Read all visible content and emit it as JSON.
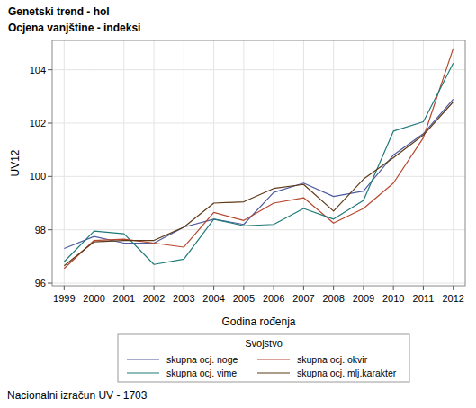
{
  "chart_data": {
    "type": "line",
    "title": "Genetski trend - hol",
    "subtitle": "Ocjena vanjštine - indeksi",
    "x_label": "Godina rođenja",
    "y_label": "UV12",
    "legend_title": "Svojstvo",
    "note": "Nacionalni izračun UV - 1703",
    "x": [
      1999,
      2000,
      2001,
      2002,
      2003,
      2004,
      2005,
      2006,
      2007,
      2008,
      2009,
      2010,
      2011,
      2012
    ],
    "series": [
      {
        "name": "skupna ocj. noge",
        "color": "#4f5b9e",
        "values": [
          97.3,
          97.75,
          97.5,
          97.5,
          98.1,
          98.4,
          98.2,
          99.4,
          99.75,
          99.25,
          99.45,
          100.8,
          101.6,
          102.9
        ]
      },
      {
        "name": "skupna ocj. okvir",
        "color": "#b5472f",
        "values": [
          96.55,
          97.6,
          97.65,
          97.5,
          97.35,
          98.65,
          98.35,
          99.0,
          99.2,
          98.25,
          98.8,
          99.75,
          101.45,
          104.8
        ]
      },
      {
        "name": "skupna ocj. vime",
        "color": "#1f7a78",
        "values": [
          96.8,
          97.95,
          97.85,
          96.7,
          96.9,
          98.4,
          98.15,
          98.2,
          98.8,
          98.4,
          99.1,
          101.7,
          102.05,
          104.25
        ]
      },
      {
        "name": "skupna ocj. mlj.karakter",
        "color": "#5e3a17",
        "values": [
          96.65,
          97.55,
          97.6,
          97.6,
          98.1,
          99.0,
          99.05,
          99.55,
          99.7,
          98.7,
          99.9,
          100.7,
          101.55,
          102.8
        ]
      }
    ],
    "xlim": [
      1998.6,
      2012.4
    ],
    "ylim": [
      95.9,
      105.1
    ],
    "xticks": [
      1999,
      2000,
      2001,
      2002,
      2003,
      2004,
      2005,
      2006,
      2007,
      2008,
      2009,
      2010,
      2011,
      2012
    ],
    "yticks": [
      96,
      98,
      100,
      102,
      104
    ],
    "grid": true,
    "legend": "bottom"
  }
}
